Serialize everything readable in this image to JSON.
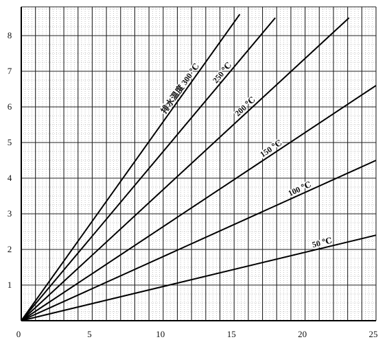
{
  "chart_data": {
    "type": "line",
    "title": "",
    "xlabel": "",
    "ylabel": "",
    "xlim": [
      0,
      25
    ],
    "ylim": [
      0,
      8.8
    ],
    "xticks": [
      0,
      5,
      10,
      15,
      20,
      25
    ],
    "yticks": [
      1,
      2,
      3,
      4,
      5,
      6,
      7,
      8
    ],
    "grid": true,
    "legend": "none",
    "series": [
      {
        "name": "排水温度 300 ℃",
        "x": [
          0,
          15.4
        ],
        "y": [
          0,
          8.6
        ]
      },
      {
        "name": "250 ℃",
        "x": [
          0,
          17.9
        ],
        "y": [
          0,
          8.5
        ]
      },
      {
        "name": "200 ℃",
        "x": [
          0,
          23.1
        ],
        "y": [
          0,
          8.5
        ]
      },
      {
        "name": "150 ℃",
        "x": [
          0,
          25
        ],
        "y": [
          0,
          6.6
        ]
      },
      {
        "name": "100 ℃",
        "x": [
          0,
          25
        ],
        "y": [
          0,
          4.5
        ]
      },
      {
        "name": "50 ℃",
        "x": [
          0,
          25
        ],
        "y": [
          0,
          2.4
        ]
      }
    ]
  }
}
